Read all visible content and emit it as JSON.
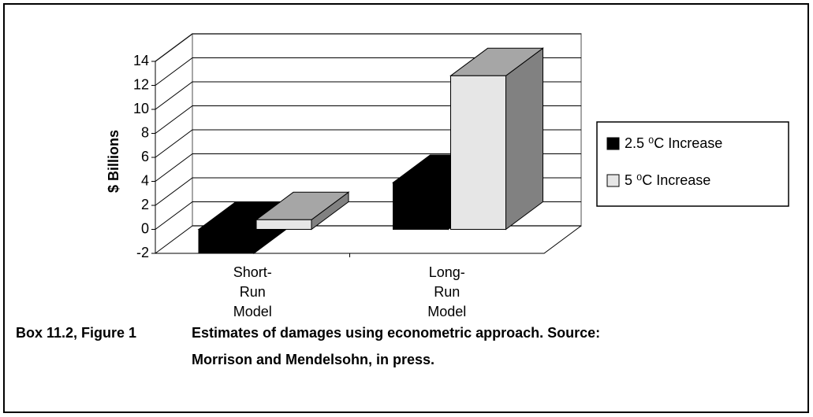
{
  "chart_data": {
    "type": "bar3d",
    "y_label": "$ Billions",
    "categories": [
      "Short-\nRun\nModel",
      "Long-\nRun\nModel"
    ],
    "series": [
      {
        "name": "2.5 ⁰C Increase",
        "color": "#000000",
        "values": [
          -2.0,
          3.9
        ]
      },
      {
        "name": "5 ⁰C Increase",
        "color": "#e6e6e6",
        "values": [
          0.8,
          12.8
        ]
      }
    ],
    "ylim": [
      -2,
      14
    ],
    "yticks": [
      -2,
      0,
      2,
      4,
      6,
      8,
      10,
      12,
      14
    ],
    "grid": true,
    "legend": "right",
    "caption_label": "Box 11.2, Figure 1",
    "caption": "Estimates of damages using econometric approach. Source: Morrison and Mendelsohn, in press."
  }
}
